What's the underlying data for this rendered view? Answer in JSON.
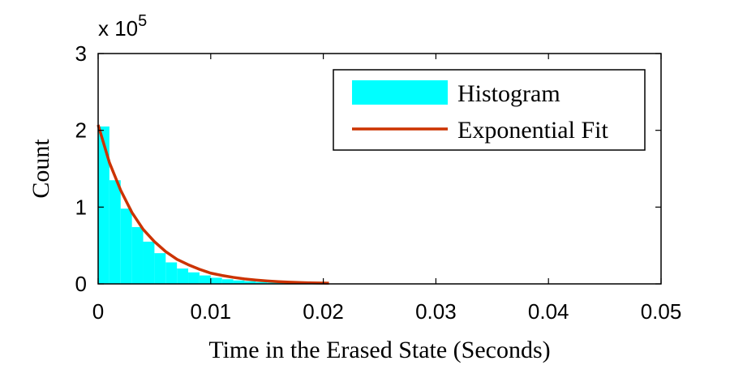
{
  "chart_data": {
    "type": "bar",
    "xlabel": "Time in  the Erased State (Seconds)",
    "ylabel": "Count",
    "y_multiplier": {
      "base": "x 10",
      "exponent": "5"
    },
    "xlim": [
      0,
      0.05
    ],
    "ylim": [
      0,
      3
    ],
    "x_ticks": [
      0,
      0.01,
      0.02,
      0.03,
      0.04,
      0.05
    ],
    "x_tick_labels": [
      "0",
      "0.01",
      "0.02",
      "0.03",
      "0.04",
      "0.05"
    ],
    "y_ticks": [
      0,
      1,
      2,
      3
    ],
    "y_tick_labels": [
      "0",
      "1",
      "2",
      "3"
    ],
    "legend_position": "top-right",
    "series": [
      {
        "name": "Histogram",
        "kind": "bar",
        "color": "#00ffff",
        "bin_width": 0.001,
        "bin_starts": [
          0,
          0.001,
          0.002,
          0.003,
          0.004,
          0.005,
          0.006,
          0.007,
          0.008,
          0.009,
          0.01,
          0.011,
          0.012,
          0.013,
          0.014,
          0.015,
          0.016,
          0.017,
          0.018,
          0.019,
          0.02
        ],
        "values": [
          2.05,
          1.35,
          0.98,
          0.74,
          0.55,
          0.4,
          0.28,
          0.2,
          0.15,
          0.11,
          0.08,
          0.06,
          0.045,
          0.035,
          0.025,
          0.018,
          0.012,
          0.008,
          0.005,
          0.003,
          0.002
        ]
      },
      {
        "name": "Exponential Fit",
        "kind": "line",
        "color": "#cc3300",
        "x": [
          0,
          0.001,
          0.002,
          0.003,
          0.004,
          0.005,
          0.006,
          0.007,
          0.008,
          0.009,
          0.01,
          0.011,
          0.012,
          0.013,
          0.014,
          0.015,
          0.016,
          0.017,
          0.018,
          0.019,
          0.02,
          0.0205
        ],
        "y": [
          2.07,
          1.58,
          1.22,
          0.93,
          0.71,
          0.55,
          0.42,
          0.32,
          0.25,
          0.19,
          0.14,
          0.11,
          0.085,
          0.065,
          0.05,
          0.038,
          0.029,
          0.022,
          0.017,
          0.013,
          0.01,
          0.009
        ]
      }
    ]
  }
}
